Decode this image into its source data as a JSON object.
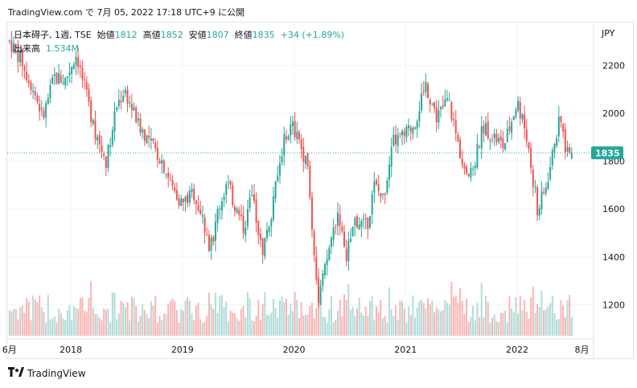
{
  "header": {
    "site": "TradingView.com",
    "caption": "で 7月 05, 2022 17:18 UTC+9 に公開"
  },
  "legend": {
    "symbol": "日本碍子, 1週, TSE",
    "open_label": "始値",
    "open": "1812",
    "high_label": "高値",
    "high": "1852",
    "low_label": "安値",
    "low": "1807",
    "close_label": "終値",
    "close": "1835",
    "change": "+34 (+1.89%)",
    "volume_label": "出来高",
    "volume": "1.534M"
  },
  "footer": {
    "logo_text": "TradingView",
    "logo_icon": "tradingview-logo-icon"
  },
  "colors": {
    "up": "#26a69a",
    "down": "#ef5350",
    "up_vol": "#a5d6d2",
    "down_vol": "#f7a9a7"
  },
  "chart_data": {
    "type": "candlestick",
    "interval": "weekly",
    "currency": "JPY",
    "y_ticks": [
      1200,
      1400,
      1600,
      1800,
      2000,
      2200
    ],
    "ylim": [
      1070,
      2380
    ],
    "x_tick_labels": [
      "6月",
      "2018",
      "2019",
      "2020",
      "2021",
      "2022",
      "8月"
    ],
    "x_tick_times": [
      2017.45,
      2018.0,
      2019.0,
      2020.0,
      2021.0,
      2022.0,
      2022.58
    ],
    "xlim": [
      2017.43,
      2022.67
    ],
    "last_price": 1835,
    "last_label": "1835",
    "anchors": [
      [
        2017.45,
        2300
      ],
      [
        2017.55,
        2230
      ],
      [
        2017.68,
        2080
      ],
      [
        2017.75,
        1980
      ],
      [
        2017.85,
        2150
      ],
      [
        2017.95,
        2140
      ],
      [
        2018.05,
        2250
      ],
      [
        2018.15,
        2050
      ],
      [
        2018.25,
        1870
      ],
      [
        2018.32,
        1800
      ],
      [
        2018.4,
        2020
      ],
      [
        2018.48,
        2100
      ],
      [
        2018.6,
        1960
      ],
      [
        2018.72,
        1870
      ],
      [
        2018.82,
        1800
      ],
      [
        2018.9,
        1700
      ],
      [
        2019.0,
        1620
      ],
      [
        2019.1,
        1670
      ],
      [
        2019.18,
        1560
      ],
      [
        2019.25,
        1430
      ],
      [
        2019.32,
        1600
      ],
      [
        2019.4,
        1710
      ],
      [
        2019.48,
        1600
      ],
      [
        2019.55,
        1520
      ],
      [
        2019.62,
        1650
      ],
      [
        2019.72,
        1430
      ],
      [
        2019.8,
        1600
      ],
      [
        2019.9,
        1870
      ],
      [
        2019.98,
        1950
      ],
      [
        2020.05,
        1880
      ],
      [
        2020.12,
        1780
      ],
      [
        2020.18,
        1420
      ],
      [
        2020.22,
        1220
      ],
      [
        2020.28,
        1350
      ],
      [
        2020.33,
        1470
      ],
      [
        2020.4,
        1600
      ],
      [
        2020.46,
        1380
      ],
      [
        2020.55,
        1560
      ],
      [
        2020.65,
        1520
      ],
      [
        2020.72,
        1700
      ],
      [
        2020.8,
        1640
      ],
      [
        2020.88,
        1880
      ],
      [
        2020.98,
        1900
      ],
      [
        2021.08,
        1960
      ],
      [
        2021.18,
        2120
      ],
      [
        2021.28,
        1980
      ],
      [
        2021.38,
        2060
      ],
      [
        2021.48,
        1850
      ],
      [
        2021.58,
        1730
      ],
      [
        2021.7,
        1950
      ],
      [
        2021.8,
        1900
      ],
      [
        2021.88,
        1860
      ],
      [
        2022.0,
        2050
      ],
      [
        2022.08,
        1920
      ],
      [
        2022.18,
        1600
      ],
      [
        2022.24,
        1660
      ],
      [
        2022.32,
        1830
      ],
      [
        2022.38,
        1990
      ],
      [
        2022.44,
        1835
      ],
      [
        2022.5,
        1835
      ]
    ],
    "volume_scale_max": 5.0,
    "volume_unit": "M"
  }
}
